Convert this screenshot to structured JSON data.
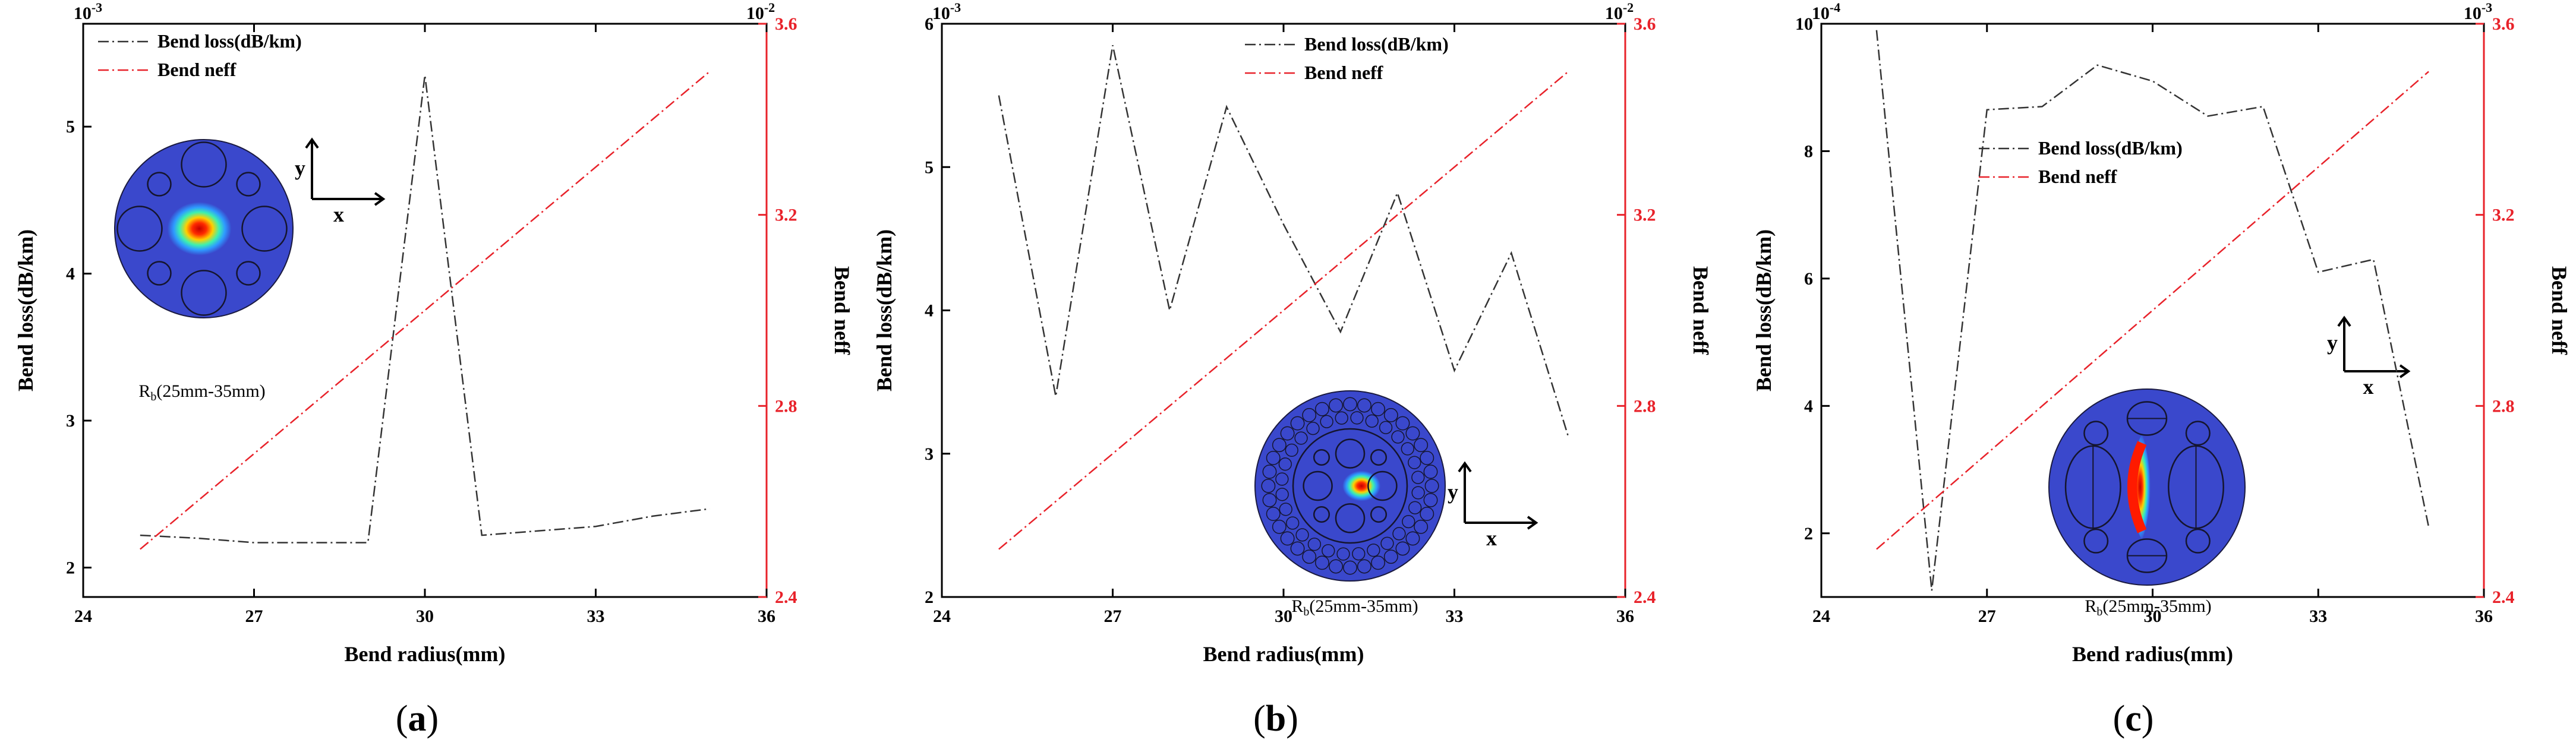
{
  "chart_data": [
    {
      "type": "line",
      "panel_caption": "a",
      "xlabel": "Bend radius(mm)",
      "ylabel": "Bend loss(dB/km)",
      "y2label": "Bend neff",
      "xlim": [
        24,
        36
      ],
      "ylim": [
        1.8,
        5.7
      ],
      "y2lim": [
        2.4,
        3.6
      ],
      "x_ticks": [
        "24",
        "27",
        "30",
        "33",
        "36"
      ],
      "y_ticks": [
        "2",
        "3",
        "4",
        "5"
      ],
      "y2_ticks": [
        "2.4",
        "2.8",
        "3.2",
        "3.6"
      ],
      "y_exponent": "10-3",
      "y2_exponent": "10-2",
      "annotation": "Rb(25mm-35mm)",
      "legend": {
        "position": "top-left"
      },
      "series": [
        {
          "name": "Bend loss(dB/km)",
          "axis": "left",
          "color": "#333333",
          "style": "dash-dot",
          "x": [
            25,
            26,
            27,
            28,
            29,
            30,
            31,
            32,
            33,
            34,
            35
          ],
          "values": [
            2.22,
            2.2,
            2.17,
            2.17,
            2.17,
            5.35,
            2.22,
            2.25,
            2.28,
            2.35,
            2.4
          ]
        },
        {
          "name": "Bend neff",
          "axis": "right",
          "color": "#e8222a",
          "style": "dash-dot",
          "x": [
            25,
            35
          ],
          "values": [
            2.5,
            3.5
          ]
        }
      ]
    },
    {
      "type": "line",
      "panel_caption": "b",
      "xlabel": "Bend radius(mm)",
      "ylabel": "Bend loss(dB/km)",
      "y2label": "Bend neff",
      "xlim": [
        24,
        36
      ],
      "ylim": [
        2,
        6
      ],
      "y2lim": [
        2.4,
        3.6
      ],
      "x_ticks": [
        "24",
        "27",
        "30",
        "33",
        "36"
      ],
      "y_ticks": [
        "2",
        "3",
        "4",
        "5",
        "6"
      ],
      "y2_ticks": [
        "2.4",
        "2.8",
        "3.2",
        "3.6"
      ],
      "y_exponent": "10-3",
      "y2_exponent": "10-2",
      "annotation": "Rb(25mm-35mm)",
      "legend": {
        "position": "top-center"
      },
      "series": [
        {
          "name": "Bend loss(dB/km)",
          "axis": "left",
          "color": "#333333",
          "style": "dash-dot",
          "x": [
            25,
            26,
            27,
            28,
            29,
            30,
            31,
            32,
            33,
            34,
            35
          ],
          "values": [
            5.5,
            3.4,
            5.85,
            4.0,
            5.42,
            4.6,
            3.85,
            4.82,
            3.58,
            4.4,
            3.12
          ]
        },
        {
          "name": "Bend neff",
          "axis": "right",
          "color": "#e8222a",
          "style": "dash-dot",
          "x": [
            25,
            35
          ],
          "values": [
            2.5,
            3.5
          ]
        }
      ]
    },
    {
      "type": "line",
      "panel_caption": "c",
      "xlabel": "Bend radius(mm)",
      "ylabel": "Bend loss(dB/km)",
      "y2label": "Bend neff",
      "xlim": [
        24,
        36
      ],
      "ylim": [
        1,
        10
      ],
      "y2lim": [
        2.4,
        3.6
      ],
      "x_ticks": [
        "24",
        "27",
        "30",
        "33",
        "36"
      ],
      "y_ticks": [
        "2",
        "4",
        "6",
        "8",
        "10"
      ],
      "y2_ticks": [
        "2.4",
        "2.8",
        "3.2",
        "3.6"
      ],
      "y_exponent": "10-4",
      "y2_exponent": "10-3",
      "annotation": "Rb(25mm-35mm)",
      "legend": {
        "position": "center-left"
      },
      "series": [
        {
          "name": "Bend loss(dB/km)",
          "axis": "left",
          "color": "#333333",
          "style": "dash-dot",
          "x": [
            25,
            26,
            27,
            28,
            29,
            30,
            31,
            32,
            33,
            34,
            35
          ],
          "values": [
            9.9,
            1.1,
            8.65,
            8.7,
            9.35,
            9.1,
            8.55,
            8.7,
            6.1,
            6.3,
            2.1
          ]
        },
        {
          "name": "Bend neff",
          "axis": "right",
          "color": "#e8222a",
          "style": "dash-dot",
          "x": [
            25,
            35
          ],
          "values": [
            2.5,
            3.5
          ]
        }
      ]
    }
  ],
  "insets": {
    "x_axis_label": "x",
    "y_axis_label": "y"
  }
}
